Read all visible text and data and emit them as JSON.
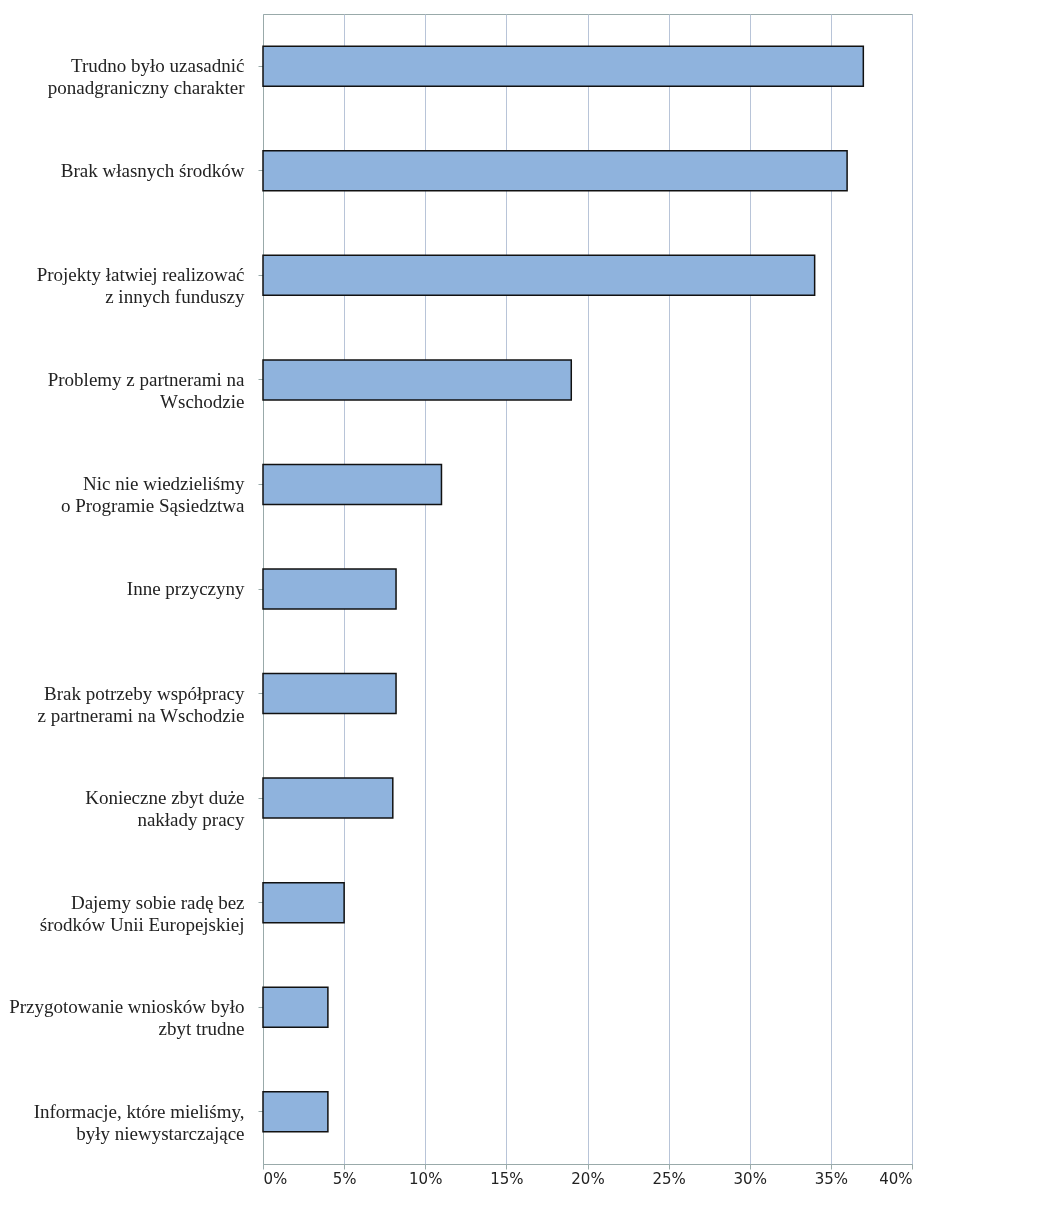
{
  "chart_data": {
    "type": "bar",
    "orientation": "horizontal",
    "categories": [
      "Trudno było uzasadnić\nponadgraniczny charakter",
      "Brak własnych środków",
      "Projekty łatwiej realizować\nz innych funduszy",
      "Problemy z partnerami na\nWschodzie",
      "Nic nie wiedzieliśmy\no Programie Sąsiedztwa",
      "Inne przyczyny",
      "Brak potrzeby współpracy\nz partnerami na Wschodzie",
      "Konieczne zbyt duże\nnakłady pracy",
      "Dajemy sobie radę bez\nśrodków Unii Europejskiej",
      "Przygotowanie wniosków było\nzbyt trudne",
      "Informacje, które mieliśmy,\nbyły niewystarczające"
    ],
    "values": [
      37,
      36,
      34,
      19,
      11,
      8.2,
      8.2,
      8,
      5,
      4,
      4
    ],
    "color": "#8fb3dd",
    "xlim": [
      0,
      40
    ],
    "xticks": [
      {
        "value": 0,
        "label": "0%"
      },
      {
        "value": 5,
        "label": "5%"
      },
      {
        "value": 10,
        "label": "10%"
      },
      {
        "value": 15,
        "label": "15%"
      },
      {
        "value": 20,
        "label": "20%"
      },
      {
        "value": 25,
        "label": "25%"
      },
      {
        "value": 30,
        "label": "30%"
      },
      {
        "value": 35,
        "label": "35%"
      },
      {
        "value": 40,
        "label": "40%"
      }
    ],
    "grid": "x"
  }
}
